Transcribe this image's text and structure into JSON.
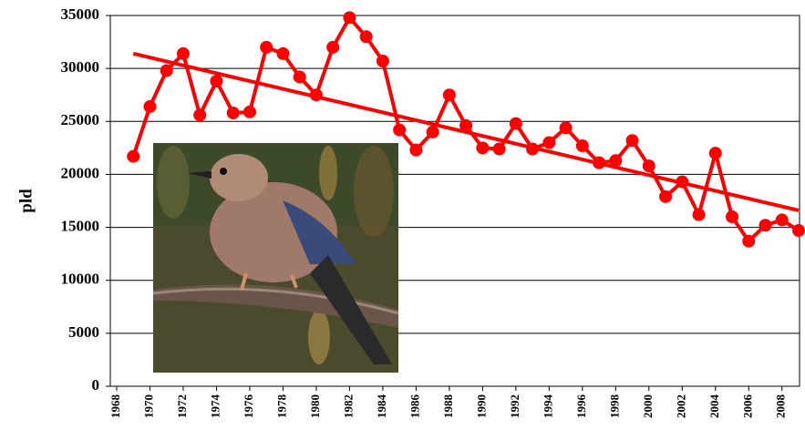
{
  "chart_data": {
    "type": "line",
    "y_label": "pld",
    "x": [
      1969,
      1970,
      1971,
      1972,
      1973,
      1974,
      1975,
      1976,
      1977,
      1978,
      1979,
      1980,
      1981,
      1982,
      1983,
      1984,
      1985,
      1986,
      1987,
      1988,
      1989,
      1990,
      1991,
      1992,
      1993,
      1994,
      1995,
      1996,
      1997,
      1998,
      1999,
      2000,
      2001,
      2002,
      2003,
      2004,
      2005,
      2006,
      2007,
      2008,
      2009
    ],
    "values": [
      21700,
      26400,
      29800,
      31400,
      25600,
      28800,
      25800,
      25900,
      32000,
      31400,
      29200,
      27500,
      32000,
      34800,
      33000,
      30700,
      24200,
      22300,
      24000,
      27500,
      24600,
      22500,
      22400,
      24800,
      22400,
      23000,
      24400,
      22700,
      21100,
      21300,
      23200,
      20800,
      17900,
      19300,
      16200,
      22000,
      16000,
      13700,
      15200,
      15700,
      14700
    ],
    "color": "#ff0000",
    "trend": {
      "x": [
        1969,
        2009
      ],
      "values": [
        31400,
        16600
      ]
    },
    "xlim": [
      1968,
      2009
    ],
    "xticks": [
      1968,
      1970,
      1972,
      1974,
      1976,
      1978,
      1980,
      1982,
      1984,
      1986,
      1988,
      1990,
      1992,
      1994,
      1996,
      1998,
      2000,
      2002,
      2004,
      2006,
      2008
    ],
    "ylim": [
      0,
      35000
    ],
    "yticks": [
      0,
      5000,
      10000,
      15000,
      20000,
      25000,
      30000,
      35000
    ],
    "grid": true
  }
}
